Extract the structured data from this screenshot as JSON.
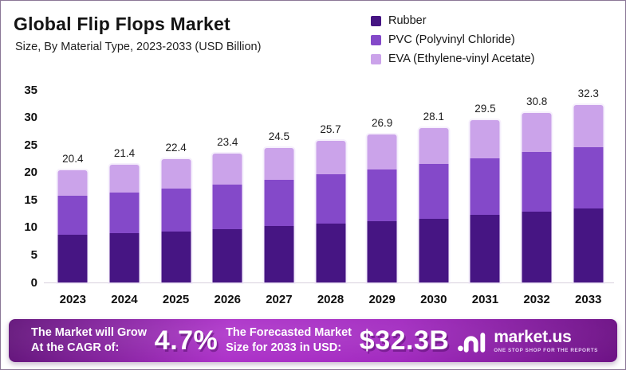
{
  "header": {
    "title": "Global Flip Flops Market",
    "subtitle": "Size, By Material Type, 2023-2033 (USD Billion)"
  },
  "colors": {
    "rubber": "#461583",
    "pvc": "#8449c9",
    "eva": "#cba3ea",
    "banner_gradient_start": "#5f0e77",
    "banner_gradient_mid": "#a826c6",
    "banner_gradient_end": "#6d1285"
  },
  "legend": {
    "items": [
      {
        "label": "Rubber",
        "color": "#461583"
      },
      {
        "label": "PVC (Polyvinyl Chloride)",
        "color": "#8449c9"
      },
      {
        "label": "EVA (Ethylene-vinyl Acetate)",
        "color": "#cba3ea"
      }
    ]
  },
  "chart_data": {
    "type": "bar",
    "stacked": true,
    "title": "Global Flip Flops Market",
    "subtitle": "Size, By Material Type, 2023-2033 (USD Billion)",
    "xlabel": "",
    "ylabel": "USD Billion",
    "ylim": [
      0,
      35
    ],
    "yticks": [
      0,
      5,
      10,
      15,
      20,
      25,
      30,
      35
    ],
    "grid": false,
    "legend_position": "top-right",
    "categories": [
      "2023",
      "2024",
      "2025",
      "2026",
      "2027",
      "2028",
      "2029",
      "2030",
      "2031",
      "2032",
      "2033"
    ],
    "series": [
      {
        "name": "Rubber",
        "color": "#461583",
        "values": [
          8.7,
          8.9,
          9.3,
          9.7,
          10.2,
          10.7,
          11.1,
          11.6,
          12.3,
          12.9,
          13.4
        ]
      },
      {
        "name": "PVC (Polyvinyl Chloride)",
        "color": "#8449c9",
        "values": [
          7.0,
          7.4,
          7.8,
          8.1,
          8.5,
          9.0,
          9.5,
          9.9,
          10.3,
          10.8,
          11.2
        ]
      },
      {
        "name": "EVA (Ethylene-vinyl Acetate)",
        "color": "#cba3ea",
        "values": [
          4.7,
          5.1,
          5.3,
          5.6,
          5.8,
          6.0,
          6.3,
          6.6,
          6.9,
          7.1,
          7.7
        ]
      }
    ],
    "totals": [
      20.4,
      21.4,
      22.4,
      23.4,
      24.5,
      25.7,
      26.9,
      28.1,
      29.5,
      30.8,
      32.3
    ]
  },
  "footer": {
    "cagr_label_line1": "The Market will Grow",
    "cagr_label_line2": "At the CAGR of:",
    "cagr_value": "4.7%",
    "forecast_label_line1": "The Forecasted Market",
    "forecast_label_line2": "Size for 2033 in USD:",
    "forecast_value": "$32.3B",
    "brand": {
      "name": "market.us",
      "tagline": "ONE STOP SHOP FOR THE REPORTS"
    }
  }
}
